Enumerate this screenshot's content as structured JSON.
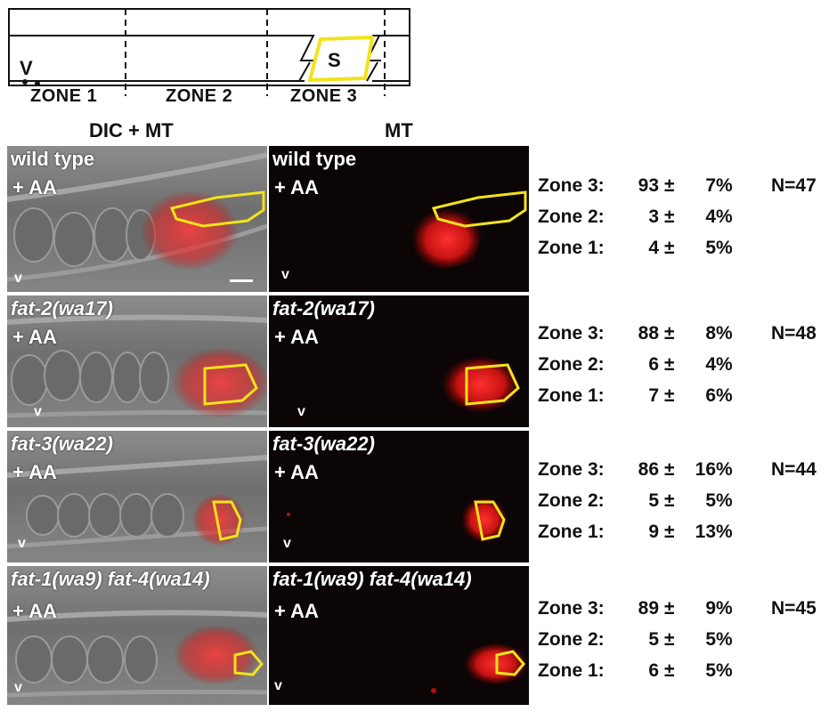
{
  "schematic": {
    "v_label": "V",
    "s_label": "S",
    "zones": [
      "ZONE 1",
      "ZONE 2",
      "ZONE 3"
    ]
  },
  "columns": [
    "DIC + MT",
    "MT"
  ],
  "treatment_label": "+ AA",
  "v_mark": "v",
  "rows": [
    {
      "genotype": "wild type",
      "italic": false,
      "n_label": "N=47",
      "stats": [
        {
          "zone": "Zone 3:",
          "mean": "93",
          "err": "7"
        },
        {
          "zone": "Zone 2:",
          "mean": "3",
          "err": "4"
        },
        {
          "zone": "Zone 1:",
          "mean": "4",
          "err": "5"
        }
      ]
    },
    {
      "genotype": "fat-2(wa17)",
      "italic": true,
      "n_label": "N=48",
      "stats": [
        {
          "zone": "Zone 3:",
          "mean": "88",
          "err": "8"
        },
        {
          "zone": "Zone 2:",
          "mean": "6",
          "err": "4"
        },
        {
          "zone": "Zone 1:",
          "mean": "7",
          "err": "6"
        }
      ]
    },
    {
      "genotype": "fat-3(wa22)",
      "italic": true,
      "n_label": "N=44",
      "stats": [
        {
          "zone": "Zone 3:",
          "mean": "86",
          "err": "16"
        },
        {
          "zone": "Zone 2:",
          "mean": "5",
          "err": "5"
        },
        {
          "zone": "Zone 1:",
          "mean": "9",
          "err": "13"
        }
      ]
    },
    {
      "genotype": "fat-1(wa9) fat-4(wa14)",
      "italic": true,
      "n_label": "N=45",
      "stats": [
        {
          "zone": "Zone 3:",
          "mean": "89",
          "err": "9"
        },
        {
          "zone": "Zone 2:",
          "mean": "5",
          "err": "5"
        },
        {
          "zone": "Zone 1:",
          "mean": "6",
          "err": "5"
        }
      ]
    }
  ],
  "stat_symbols": {
    "plus_minus": "±",
    "percent": "%"
  },
  "colors": {
    "outline": "#f2e31a",
    "signal": "#ff2020",
    "dic_bg": "#7a7a7a",
    "mt_bg": "#0b0505"
  }
}
